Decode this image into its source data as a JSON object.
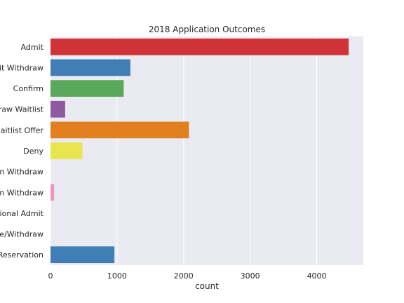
{
  "chart_data": {
    "type": "bar",
    "orientation": "horizontal",
    "title": "2018 Application Outcomes",
    "xlabel": "count",
    "ylabel": "",
    "xlim": [
      0,
      4700
    ],
    "xticks": [
      "0",
      "1000",
      "2000",
      "3000",
      "4000"
    ],
    "grid": true,
    "categories": [
      "Admit",
      "it Withdraw",
      "Confirm",
      "raw Waitlist",
      "aitlist Offer",
      "Deny",
      "n Withdraw",
      "n Withdraw",
      "ional Admit",
      "e/Withdraw",
      "Reservation"
    ],
    "values": [
      4480,
      1200,
      1100,
      220,
      2080,
      480,
      0,
      55,
      0,
      0,
      960
    ],
    "colors": [
      "#d03337",
      "#417eb5",
      "#5aa95b",
      "#8f59a0",
      "#e27f1f",
      "#e9e64d",
      "#a85a31",
      "#e897c5",
      "#999999",
      "#d03337",
      "#417eb5"
    ],
    "background": "#eaeaf2",
    "grid_color": "#ffffff"
  }
}
